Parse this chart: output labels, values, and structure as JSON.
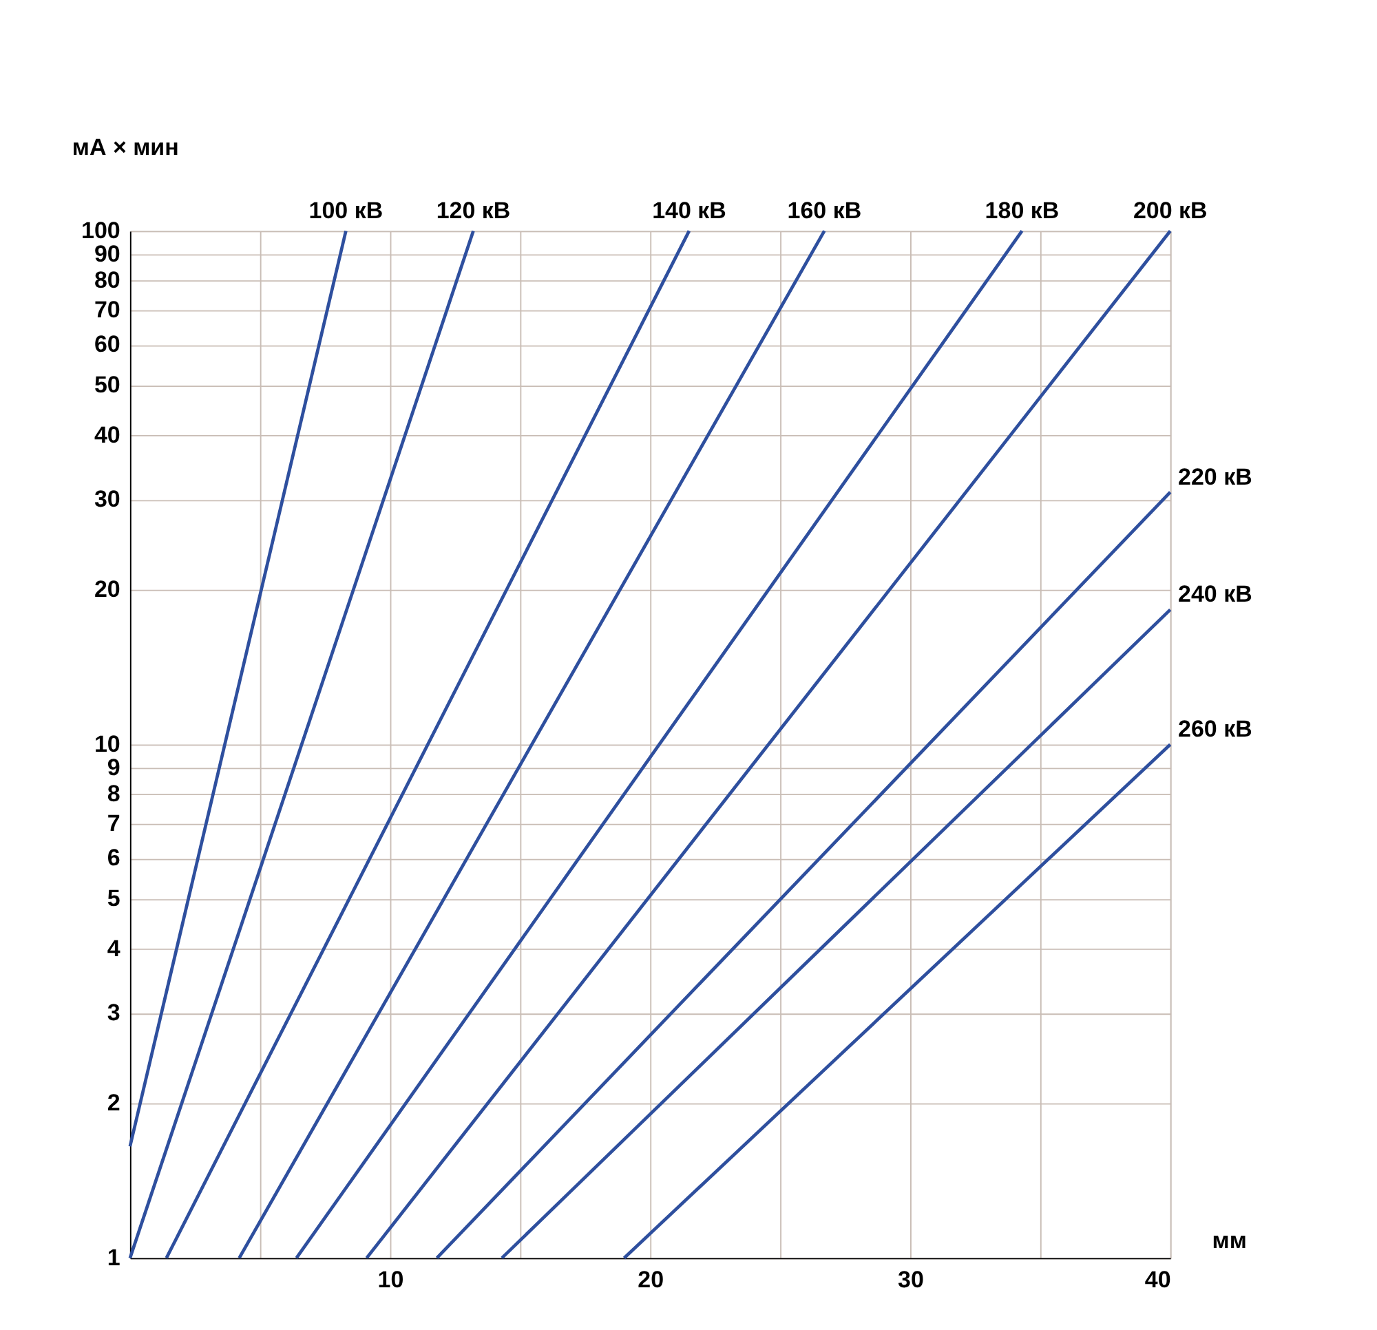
{
  "chart_data": {
    "type": "line",
    "xlabel": "мм",
    "ylabel": "мА × мин",
    "log": "y",
    "grid": true,
    "legend": false,
    "marker": "none",
    "line_style": "solid",
    "xlim": [
      0,
      40
    ],
    "ylim": [
      1,
      100
    ],
    "xticks": [
      {
        "value": 5,
        "label": null
      },
      10,
      {
        "value": 15,
        "label": null
      },
      20,
      {
        "value": 25,
        "label": null
      },
      30,
      {
        "value": 35,
        "label": null
      },
      40
    ],
    "yticks": [
      1,
      2,
      3,
      4,
      5,
      6,
      7,
      8,
      9,
      10,
      20,
      30,
      40,
      50,
      60,
      70,
      80,
      90,
      100
    ],
    "series": [
      {
        "name": "100 кВ",
        "color": "#2e4f9e",
        "x": [
          0,
          8.3
        ],
        "values": [
          1.65,
          100
        ]
      },
      {
        "name": "120 кВ",
        "color": "#2e4f9e",
        "x": [
          0,
          13.2
        ],
        "values": [
          1,
          100
        ]
      },
      {
        "name": "140 кВ",
        "color": "#2e4f9e",
        "x": [
          1.4,
          21.5
        ],
        "values": [
          1,
          100
        ]
      },
      {
        "name": "160 кВ",
        "color": "#2e4f9e",
        "x": [
          4.2,
          26.7
        ],
        "values": [
          1,
          100
        ]
      },
      {
        "name": "180 кВ",
        "color": "#2e4f9e",
        "x": [
          6.4,
          34.3
        ],
        "values": [
          1,
          100
        ]
      },
      {
        "name": "200 кВ",
        "color": "#2e4f9e",
        "x": [
          9.1,
          40
        ],
        "values": [
          1,
          100
        ]
      },
      {
        "name": "220 кВ",
        "color": "#2e4f9e",
        "x": [
          11.8,
          40
        ],
        "values": [
          1,
          31
        ]
      },
      {
        "name": "240 кВ",
        "color": "#2e4f9e",
        "x": [
          14.3,
          40
        ],
        "values": [
          1,
          18.3
        ]
      },
      {
        "name": "260 кВ",
        "color": "#2e4f9e",
        "x": [
          19.0,
          40
        ],
        "values": [
          1,
          10
        ]
      }
    ]
  }
}
